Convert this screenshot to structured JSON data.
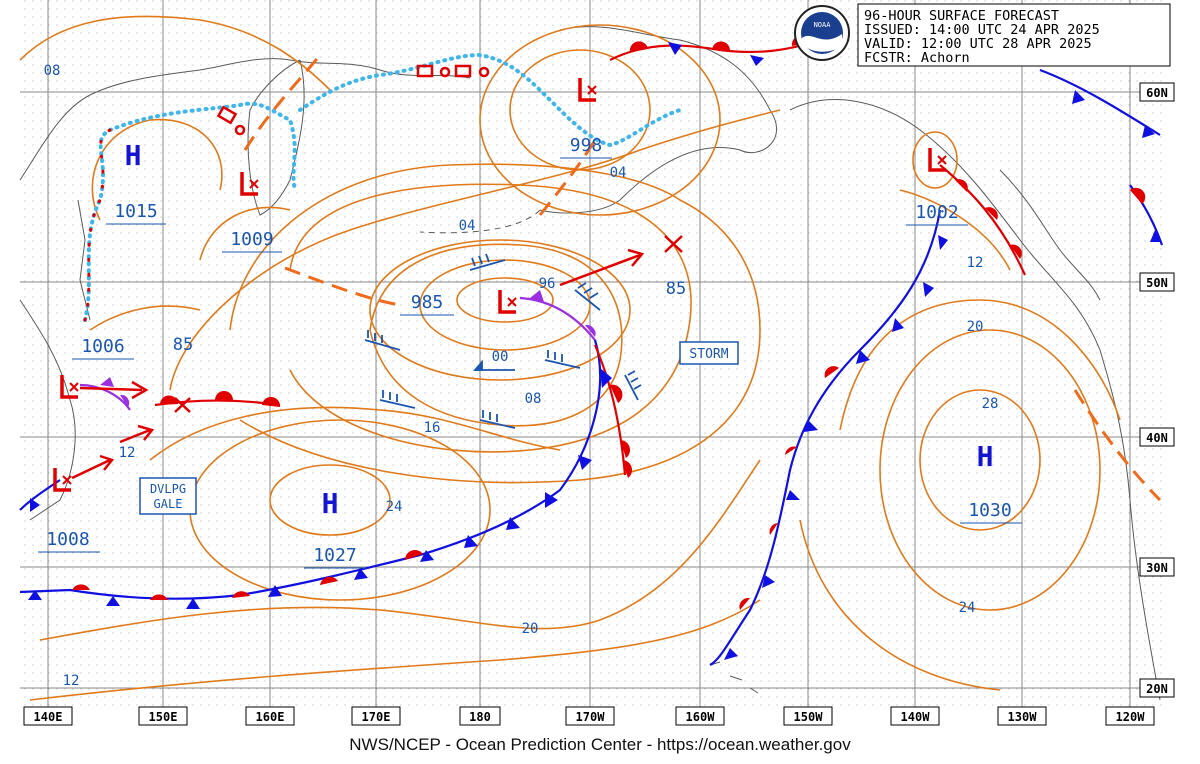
{
  "header": {
    "line1": "96-HOUR SURFACE FORECAST",
    "line2": "ISSUED: 14:00 UTC 24 APR 2025",
    "line3": "VALID:  12:00 UTC 28 APR 2025",
    "line4": "FCSTR:  Achorn",
    "logo_text": "NOAA"
  },
  "credit": "NWS/NCEP - Ocean Prediction Center - https://ocean.weather.gov",
  "axes": {
    "longitudes": [
      "140E",
      "150E",
      "160E",
      "170E",
      "180",
      "170W",
      "160W",
      "150W",
      "140W",
      "130W",
      "120W"
    ],
    "latitudes": [
      "60N",
      "50N",
      "40N",
      "30N",
      "20N"
    ]
  },
  "pressure_centers": {
    "H1": {
      "symbol": "H",
      "value": "1015"
    },
    "L1": {
      "value": "1009"
    },
    "L2": {
      "value": "998"
    },
    "L3": {
      "value": "985"
    },
    "L4": {
      "value": "1006"
    },
    "L5": {
      "value": "1008"
    },
    "H2": {
      "symbol": "H",
      "value": "1027"
    },
    "L6": {
      "value": "1002"
    },
    "H3": {
      "symbol": "H",
      "value": "1030"
    }
  },
  "warnings": {
    "storm": "STORM",
    "gale_line1": "DVLPG",
    "gale_line2": "GALE"
  },
  "isobar_labels": {
    "i08nw": "08",
    "i04a": "04",
    "i04b": "04",
    "i96": "96",
    "i85a": "85",
    "i85b": "85",
    "i00": "00",
    "i08": "08",
    "i16": "16",
    "i12a": "12",
    "i24a": "24",
    "i20a": "20",
    "i12b": "12",
    "i12c": "12",
    "i20b": "20",
    "i28": "28",
    "i24b": "24"
  },
  "colors": {
    "isobar": "#e07a1a",
    "label_blue": "#1a56b0",
    "cold_front": "#1010e0",
    "warm_front": "#e00000",
    "occluded_front": "#9b30e0",
    "ice_edge": "#3fb6ea",
    "trough": "#f06a1a",
    "grid": "#888888",
    "coast": "#555555"
  }
}
